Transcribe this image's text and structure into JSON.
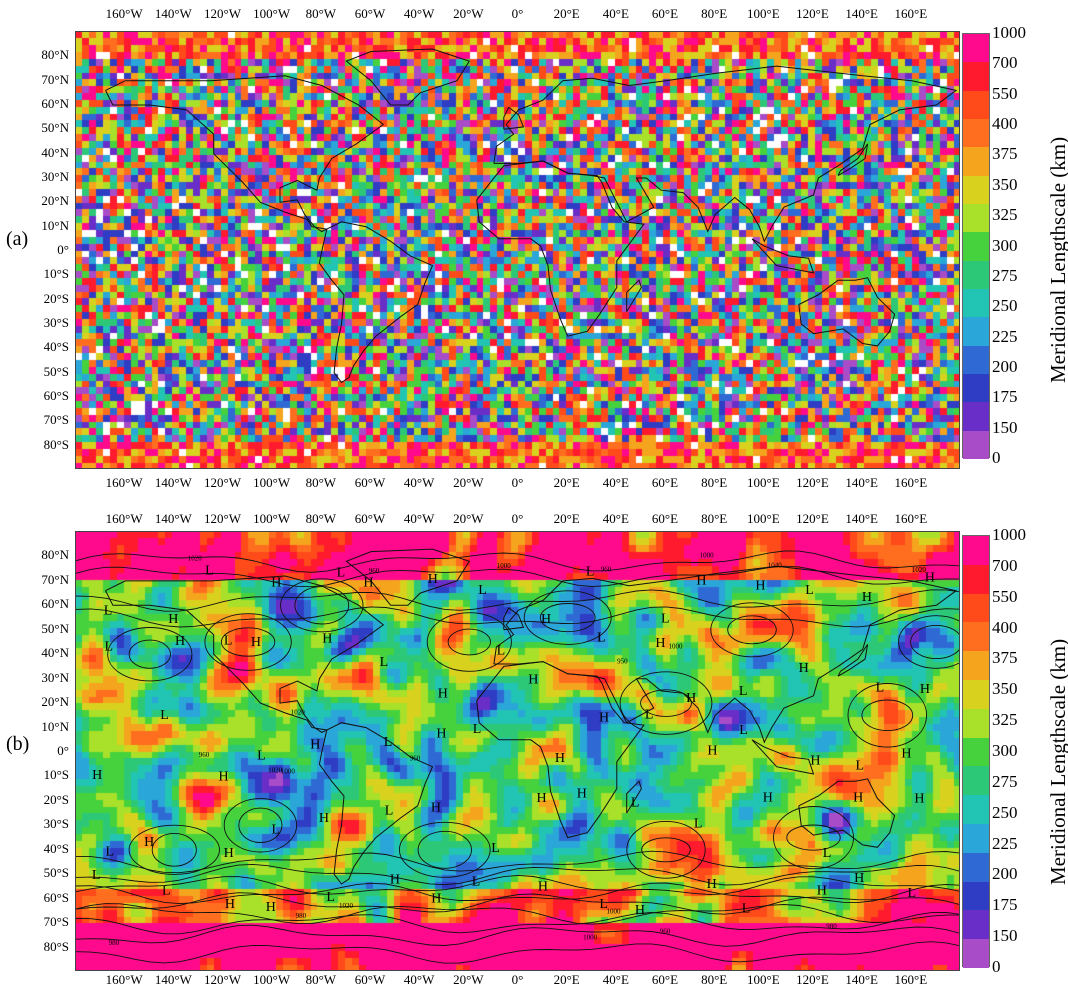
{
  "figure": {
    "panels": [
      {
        "id": "a",
        "label": "(a)",
        "seed": 7,
        "smoothness": "noisy",
        "show_pressure_systems": false
      },
      {
        "id": "b",
        "label": "(b)",
        "seed": 42,
        "smoothness": "smooth",
        "show_pressure_systems": true
      }
    ],
    "longitude_labels": [
      "160°W",
      "140°W",
      "120°W",
      "100°W",
      "80°W",
      "60°W",
      "40°W",
      "20°W",
      "0°",
      "20°E",
      "40°E",
      "60°E",
      "80°E",
      "100°E",
      "120°E",
      "140°E",
      "160°E"
    ],
    "latitude_labels": [
      "80°N",
      "70°N",
      "60°N",
      "50°N",
      "40°N",
      "30°N",
      "20°N",
      "10°N",
      "0°",
      "10°S",
      "20°S",
      "30°S",
      "40°S",
      "50°S",
      "60°S",
      "70°S",
      "80°S"
    ],
    "colorbar": {
      "title": "Meridional Lengthscale (km)",
      "ticks": [
        "1000",
        "700",
        "550",
        "400",
        "375",
        "350",
        "325",
        "300",
        "275",
        "250",
        "225",
        "200",
        "175",
        "150",
        "0"
      ],
      "colors": [
        "#ff0a8c",
        "#ff1a2e",
        "#ff4a1a",
        "#ff6e1e",
        "#f5a41e",
        "#d8d21e",
        "#a8e02a",
        "#46d23c",
        "#2cc878",
        "#22c4b4",
        "#2aa6d8",
        "#2f6ad4",
        "#2f3cc4",
        "#6a2ec8",
        "#a84cc8"
      ],
      "tick_values_km": [
        1000,
        700,
        550,
        400,
        375,
        350,
        325,
        300,
        275,
        250,
        225,
        200,
        175,
        150,
        0
      ]
    },
    "pressure_letters": [
      "L",
      "H",
      "L",
      "H",
      "L",
      "H",
      "H",
      "L",
      "H",
      "L",
      "L",
      "H",
      "H",
      "L",
      "H",
      "H",
      "L",
      "H",
      "L",
      "H",
      "H",
      "L",
      "H",
      "L",
      "H",
      "L",
      "H",
      "H",
      "L",
      "H",
      "L",
      "H",
      "H",
      "L",
      "H",
      "L",
      "H",
      "L",
      "H",
      "L",
      "H",
      "H",
      "L",
      "H",
      "L",
      "H",
      "L",
      "H",
      "L",
      "H",
      "H",
      "L",
      "H",
      "L",
      "H",
      "L",
      "H",
      "H",
      "L",
      "L",
      "H",
      "L",
      "H",
      "H",
      "L",
      "L",
      "H",
      "H",
      "L",
      "H",
      "H",
      "L",
      "H",
      "L",
      "H",
      "H",
      "L",
      "H",
      "H",
      "L"
    ],
    "contour_labels": [
      "1020",
      "1020",
      "1000",
      "1020",
      "1000",
      "1020",
      "1040",
      "1000",
      "1020",
      "1000",
      "980",
      "1000",
      "960",
      "980",
      "950",
      "1000",
      "980",
      "960",
      "960",
      "960",
      "960"
    ]
  }
}
